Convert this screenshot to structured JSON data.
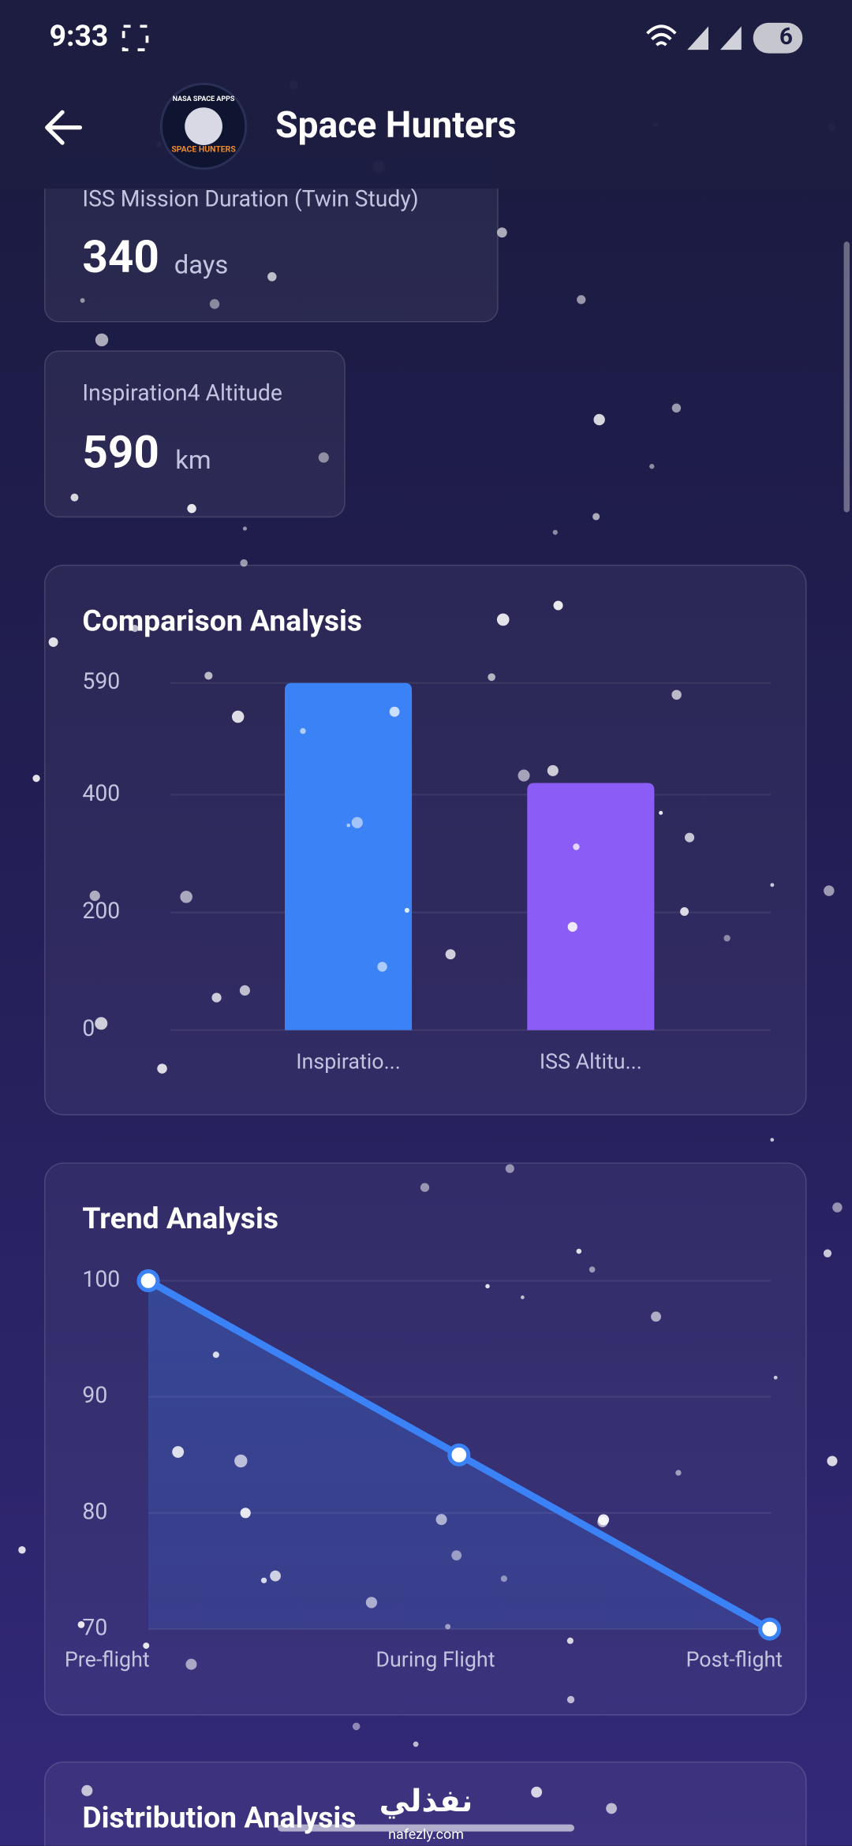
{
  "status_bar": {
    "time": "9:33",
    "battery": "6"
  },
  "app_bar": {
    "title": "Space Hunters",
    "logo_top": "NASA SPACE APPS",
    "logo_bottom": "SPACE HUNTERS"
  },
  "stats": [
    {
      "label": "ISS Mission Duration (Twin Study)",
      "value": 340,
      "unit": "days"
    },
    {
      "label": "Inspiration4 Altitude",
      "value": 590,
      "unit": "km"
    }
  ],
  "comparison_chart": {
    "type": "bar",
    "title": "Comparison Analysis",
    "categories": [
      "Inspiratio...",
      "ISS Altitu..."
    ],
    "values": [
      590,
      420
    ],
    "colors": [
      "#3b82f6",
      "#8b5cf6"
    ],
    "ylim": [
      0,
      590
    ],
    "yticks": [
      0,
      200,
      400,
      590
    ],
    "grid": true
  },
  "trend_chart": {
    "type": "line",
    "title": "Trend Analysis",
    "categories": [
      "Pre-flight",
      "During Flight",
      "Post-flight"
    ],
    "values": [
      100,
      85,
      70
    ],
    "color": "#3b82f6",
    "ylim": [
      70,
      100
    ],
    "yticks": [
      70,
      80,
      90,
      100
    ],
    "grid": true,
    "area": true
  },
  "partial_card": {
    "title": "Distribution Analysis"
  },
  "watermark": {
    "arabic": "نفذلي",
    "url": "nafezly.com"
  }
}
